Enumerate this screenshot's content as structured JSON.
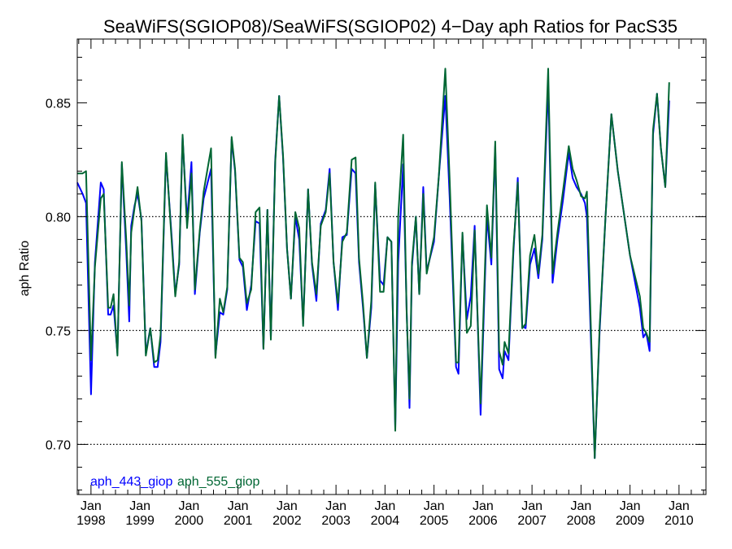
{
  "chart_data": {
    "type": "line",
    "title": "SeaWiFS(SGIOP08)/SeaWiFS(SGIOP02) 4−Day aph Ratios for PacS35",
    "xlabel": "",
    "ylabel": "aph Ratio",
    "xlim": [
      1997.72,
      2010.55
    ],
    "ylim": [
      0.678,
      0.878
    ],
    "y_ticks": [
      {
        "value": 0.7,
        "label": "0.70"
      },
      {
        "value": 0.75,
        "label": "0.75"
      },
      {
        "value": 0.8,
        "label": "0.80"
      },
      {
        "value": 0.85,
        "label": "0.85"
      }
    ],
    "y_gridlines": [
      0.7,
      0.75,
      0.8
    ],
    "x_ticks": [
      {
        "value": 1998,
        "month": "Jan",
        "year": "1998"
      },
      {
        "value": 1999,
        "month": "Jan",
        "year": "1999"
      },
      {
        "value": 2000,
        "month": "Jan",
        "year": "2000"
      },
      {
        "value": 2001,
        "month": "Jan",
        "year": "2001"
      },
      {
        "value": 2002,
        "month": "Jan",
        "year": "2002"
      },
      {
        "value": 2003,
        "month": "Jan",
        "year": "2003"
      },
      {
        "value": 2004,
        "month": "Jan",
        "year": "2004"
      },
      {
        "value": 2005,
        "month": "Jan",
        "year": "2005"
      },
      {
        "value": 2006,
        "month": "Jan",
        "year": "2006"
      },
      {
        "value": 2007,
        "month": "Jan",
        "year": "2007"
      },
      {
        "value": 2008,
        "month": "Jan",
        "year": "2008"
      },
      {
        "value": 2009,
        "month": "Jan",
        "year": "2009"
      },
      {
        "value": 2010,
        "month": "Jan",
        "year": "2010"
      }
    ],
    "legend": "bottom-left",
    "series": [
      {
        "name": "aph_443_giop",
        "color": "#0000ff",
        "points": [
          [
            1997.72,
            0.815
          ],
          [
            1997.83,
            0.81
          ],
          [
            1997.9,
            0.806
          ],
          [
            1998.0,
            0.722
          ],
          [
            1998.08,
            0.78
          ],
          [
            1998.2,
            0.815
          ],
          [
            1998.26,
            0.812
          ],
          [
            1998.35,
            0.757
          ],
          [
            1998.4,
            0.757
          ],
          [
            1998.46,
            0.761
          ],
          [
            1998.54,
            0.74
          ],
          [
            1998.63,
            0.823
          ],
          [
            1998.72,
            0.785
          ],
          [
            1998.78,
            0.754
          ],
          [
            1998.82,
            0.796
          ],
          [
            1998.89,
            0.805
          ],
          [
            1998.95,
            0.81
          ],
          [
            1999.03,
            0.799
          ],
          [
            1999.12,
            0.74
          ],
          [
            1999.21,
            0.751
          ],
          [
            1999.29,
            0.734
          ],
          [
            1999.36,
            0.734
          ],
          [
            1999.42,
            0.745
          ],
          [
            1999.53,
            0.827
          ],
          [
            1999.65,
            0.79
          ],
          [
            1999.72,
            0.766
          ],
          [
            1999.8,
            0.779
          ],
          [
            1999.87,
            0.835
          ],
          [
            1999.96,
            0.798
          ],
          [
            2000.05,
            0.824
          ],
          [
            2000.12,
            0.766
          ],
          [
            2000.22,
            0.793
          ],
          [
            2000.3,
            0.808
          ],
          [
            2000.45,
            0.821
          ],
          [
            2000.54,
            0.739
          ],
          [
            2000.63,
            0.758
          ],
          [
            2000.7,
            0.757
          ],
          [
            2000.78,
            0.768
          ],
          [
            2000.87,
            0.834
          ],
          [
            2000.94,
            0.82
          ],
          [
            2001.03,
            0.781
          ],
          [
            2001.1,
            0.778
          ],
          [
            2001.18,
            0.759
          ],
          [
            2001.27,
            0.77
          ],
          [
            2001.36,
            0.798
          ],
          [
            2001.44,
            0.797
          ],
          [
            2001.52,
            0.742
          ],
          [
            2001.6,
            0.803
          ],
          [
            2001.67,
            0.747
          ],
          [
            2001.76,
            0.825
          ],
          [
            2001.84,
            0.853
          ],
          [
            2001.92,
            0.826
          ],
          [
            2002.0,
            0.786
          ],
          [
            2002.08,
            0.764
          ],
          [
            2002.17,
            0.8
          ],
          [
            2002.25,
            0.79
          ],
          [
            2002.33,
            0.753
          ],
          [
            2002.43,
            0.812
          ],
          [
            2002.51,
            0.779
          ],
          [
            2002.6,
            0.763
          ],
          [
            2002.69,
            0.797
          ],
          [
            2002.79,
            0.803
          ],
          [
            2002.87,
            0.821
          ],
          [
            2002.95,
            0.78
          ],
          [
            2003.04,
            0.759
          ],
          [
            2003.13,
            0.791
          ],
          [
            2003.22,
            0.792
          ],
          [
            2003.32,
            0.821
          ],
          [
            2003.4,
            0.819
          ],
          [
            2003.47,
            0.78
          ],
          [
            2003.55,
            0.76
          ],
          [
            2003.63,
            0.738
          ],
          [
            2003.72,
            0.76
          ],
          [
            2003.8,
            0.814
          ],
          [
            2003.9,
            0.772
          ],
          [
            2003.97,
            0.77
          ],
          [
            2004.05,
            0.791
          ],
          [
            2004.13,
            0.789
          ],
          [
            2004.21,
            0.707
          ],
          [
            2004.27,
            0.78
          ],
          [
            2004.37,
            0.823
          ],
          [
            2004.44,
            0.76
          ],
          [
            2004.5,
            0.716
          ],
          [
            2004.55,
            0.778
          ],
          [
            2004.63,
            0.8
          ],
          [
            2004.7,
            0.766
          ],
          [
            2004.78,
            0.813
          ],
          [
            2004.85,
            0.776
          ],
          [
            2005.0,
            0.789
          ],
          [
            2005.1,
            0.818
          ],
          [
            2005.23,
            0.853
          ],
          [
            2005.32,
            0.808
          ],
          [
            2005.45,
            0.734
          ],
          [
            2005.5,
            0.731
          ],
          [
            2005.58,
            0.792
          ],
          [
            2005.67,
            0.755
          ],
          [
            2005.75,
            0.765
          ],
          [
            2005.83,
            0.796
          ],
          [
            2005.95,
            0.713
          ],
          [
            2006.08,
            0.8
          ],
          [
            2006.17,
            0.779
          ],
          [
            2006.25,
            0.831
          ],
          [
            2006.33,
            0.733
          ],
          [
            2006.4,
            0.729
          ],
          [
            2006.44,
            0.741
          ],
          [
            2006.52,
            0.737
          ],
          [
            2006.62,
            0.784
          ],
          [
            2006.71,
            0.817
          ],
          [
            2006.8,
            0.752
          ],
          [
            2006.87,
            0.751
          ],
          [
            2006.96,
            0.779
          ],
          [
            2007.05,
            0.786
          ],
          [
            2007.13,
            0.773
          ],
          [
            2007.21,
            0.79
          ],
          [
            2007.33,
            0.858
          ],
          [
            2007.42,
            0.771
          ],
          [
            2007.52,
            0.79
          ],
          [
            2007.63,
            0.807
          ],
          [
            2007.75,
            0.828
          ],
          [
            2007.83,
            0.817
          ],
          [
            2007.91,
            0.813
          ],
          [
            2008.0,
            0.81
          ],
          [
            2008.08,
            0.806
          ],
          [
            2008.12,
            0.8
          ],
          [
            2008.28,
            0.694
          ],
          [
            2008.38,
            0.75
          ],
          [
            2008.5,
            0.8
          ],
          [
            2008.62,
            0.845
          ],
          [
            2008.75,
            0.82
          ],
          [
            2009.0,
            0.783
          ],
          [
            2009.2,
            0.76
          ],
          [
            2009.27,
            0.747
          ],
          [
            2009.33,
            0.749
          ],
          [
            2009.4,
            0.741
          ],
          [
            2009.47,
            0.836
          ],
          [
            2009.55,
            0.854
          ],
          [
            2009.63,
            0.83
          ],
          [
            2009.72,
            0.813
          ],
          [
            2009.8,
            0.851
          ]
        ]
      },
      {
        "name": "aph_555_giop",
        "color": "#006633",
        "points": [
          [
            1997.72,
            0.819
          ],
          [
            1997.83,
            0.819
          ],
          [
            1997.9,
            0.82
          ],
          [
            1998.0,
            0.737
          ],
          [
            1998.08,
            0.778
          ],
          [
            1998.2,
            0.808
          ],
          [
            1998.26,
            0.81
          ],
          [
            1998.35,
            0.76
          ],
          [
            1998.4,
            0.76
          ],
          [
            1998.46,
            0.766
          ],
          [
            1998.54,
            0.739
          ],
          [
            1998.63,
            0.824
          ],
          [
            1998.72,
            0.79
          ],
          [
            1998.78,
            0.761
          ],
          [
            1998.82,
            0.793
          ],
          [
            1998.89,
            0.804
          ],
          [
            1998.95,
            0.813
          ],
          [
            1999.03,
            0.798
          ],
          [
            1999.12,
            0.739
          ],
          [
            1999.21,
            0.751
          ],
          [
            1999.29,
            0.736
          ],
          [
            1999.36,
            0.737
          ],
          [
            1999.42,
            0.748
          ],
          [
            1999.53,
            0.828
          ],
          [
            1999.65,
            0.788
          ],
          [
            1999.72,
            0.765
          ],
          [
            1999.8,
            0.78
          ],
          [
            1999.87,
            0.836
          ],
          [
            1999.96,
            0.795
          ],
          [
            2000.05,
            0.819
          ],
          [
            2000.12,
            0.768
          ],
          [
            2000.22,
            0.794
          ],
          [
            2000.3,
            0.811
          ],
          [
            2000.45,
            0.83
          ],
          [
            2000.54,
            0.738
          ],
          [
            2000.63,
            0.764
          ],
          [
            2000.7,
            0.758
          ],
          [
            2000.78,
            0.769
          ],
          [
            2000.87,
            0.835
          ],
          [
            2000.94,
            0.821
          ],
          [
            2001.03,
            0.782
          ],
          [
            2001.1,
            0.78
          ],
          [
            2001.18,
            0.762
          ],
          [
            2001.27,
            0.768
          ],
          [
            2001.36,
            0.802
          ],
          [
            2001.44,
            0.804
          ],
          [
            2001.52,
            0.742
          ],
          [
            2001.6,
            0.803
          ],
          [
            2001.67,
            0.746
          ],
          [
            2001.76,
            0.824
          ],
          [
            2001.84,
            0.853
          ],
          [
            2001.92,
            0.827
          ],
          [
            2002.0,
            0.786
          ],
          [
            2002.08,
            0.764
          ],
          [
            2002.17,
            0.802
          ],
          [
            2002.25,
            0.795
          ],
          [
            2002.33,
            0.752
          ],
          [
            2002.43,
            0.812
          ],
          [
            2002.51,
            0.78
          ],
          [
            2002.6,
            0.766
          ],
          [
            2002.69,
            0.796
          ],
          [
            2002.79,
            0.802
          ],
          [
            2002.87,
            0.819
          ],
          [
            2002.95,
            0.78
          ],
          [
            2003.04,
            0.762
          ],
          [
            2003.13,
            0.789
          ],
          [
            2003.22,
            0.793
          ],
          [
            2003.32,
            0.825
          ],
          [
            2003.4,
            0.826
          ],
          [
            2003.47,
            0.782
          ],
          [
            2003.55,
            0.762
          ],
          [
            2003.63,
            0.738
          ],
          [
            2003.72,
            0.763
          ],
          [
            2003.8,
            0.815
          ],
          [
            2003.9,
            0.767
          ],
          [
            2003.97,
            0.767
          ],
          [
            2004.05,
            0.791
          ],
          [
            2004.13,
            0.789
          ],
          [
            2004.21,
            0.706
          ],
          [
            2004.27,
            0.8
          ],
          [
            2004.37,
            0.836
          ],
          [
            2004.44,
            0.759
          ],
          [
            2004.5,
            0.72
          ],
          [
            2004.55,
            0.78
          ],
          [
            2004.63,
            0.8
          ],
          [
            2004.7,
            0.766
          ],
          [
            2004.78,
            0.81
          ],
          [
            2004.85,
            0.775
          ],
          [
            2005.0,
            0.791
          ],
          [
            2005.1,
            0.818
          ],
          [
            2005.23,
            0.865
          ],
          [
            2005.32,
            0.816
          ],
          [
            2005.45,
            0.736
          ],
          [
            2005.5,
            0.736
          ],
          [
            2005.58,
            0.793
          ],
          [
            2005.67,
            0.749
          ],
          [
            2005.75,
            0.752
          ],
          [
            2005.83,
            0.794
          ],
          [
            2005.95,
            0.718
          ],
          [
            2006.08,
            0.805
          ],
          [
            2006.17,
            0.782
          ],
          [
            2006.25,
            0.833
          ],
          [
            2006.33,
            0.741
          ],
          [
            2006.4,
            0.735
          ],
          [
            2006.44,
            0.745
          ],
          [
            2006.52,
            0.74
          ],
          [
            2006.62,
            0.786
          ],
          [
            2006.71,
            0.815
          ],
          [
            2006.8,
            0.751
          ],
          [
            2006.87,
            0.753
          ],
          [
            2006.96,
            0.783
          ],
          [
            2007.05,
            0.792
          ],
          [
            2007.13,
            0.775
          ],
          [
            2007.21,
            0.792
          ],
          [
            2007.33,
            0.865
          ],
          [
            2007.42,
            0.775
          ],
          [
            2007.52,
            0.793
          ],
          [
            2007.63,
            0.811
          ],
          [
            2007.75,
            0.831
          ],
          [
            2007.83,
            0.821
          ],
          [
            2007.91,
            0.816
          ],
          [
            2008.0,
            0.809
          ],
          [
            2008.08,
            0.808
          ],
          [
            2008.12,
            0.811
          ],
          [
            2008.28,
            0.694
          ],
          [
            2008.38,
            0.752
          ],
          [
            2008.5,
            0.8
          ],
          [
            2008.62,
            0.845
          ],
          [
            2008.75,
            0.82
          ],
          [
            2009.0,
            0.783
          ],
          [
            2009.2,
            0.765
          ],
          [
            2009.27,
            0.751
          ],
          [
            2009.33,
            0.749
          ],
          [
            2009.4,
            0.745
          ],
          [
            2009.47,
            0.838
          ],
          [
            2009.55,
            0.854
          ],
          [
            2009.63,
            0.83
          ],
          [
            2009.72,
            0.813
          ],
          [
            2009.8,
            0.859
          ]
        ]
      }
    ]
  }
}
